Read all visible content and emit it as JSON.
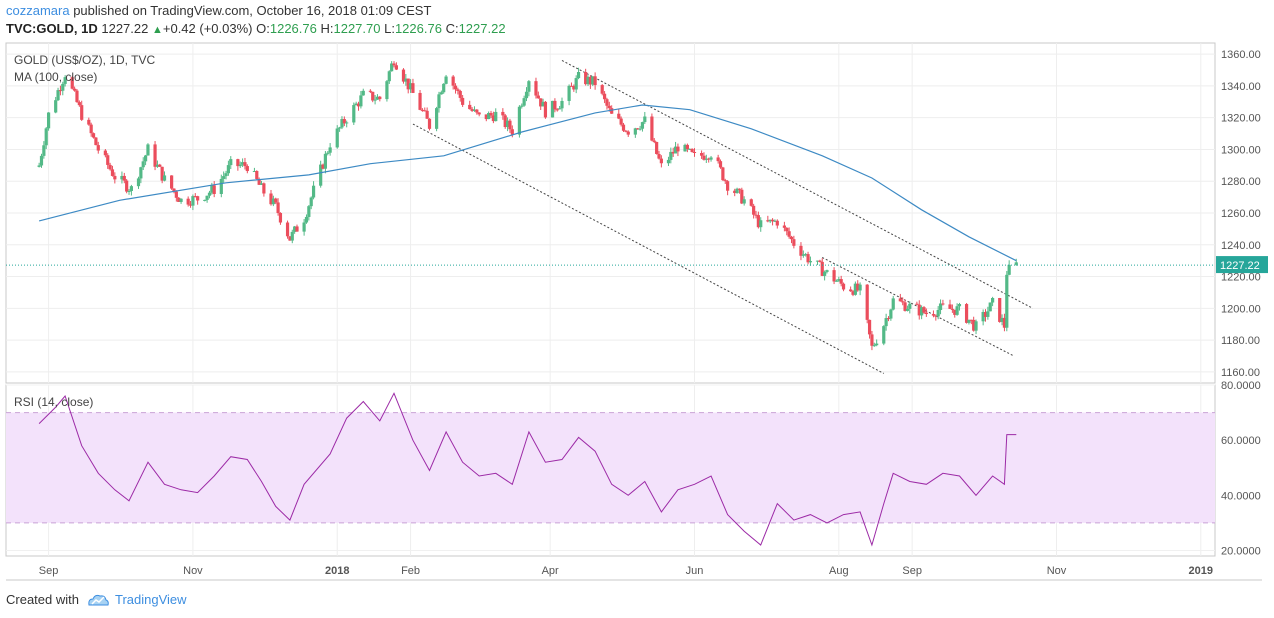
{
  "header": {
    "author": "cozzamara",
    "published_text": " published on TradingView.com, October 16, 2018 01:09 CEST",
    "symbol": "TVC:GOLD, 1D",
    "last": "1227.22",
    "change": "+0.42 (+0.03%)",
    "o_label": "O:",
    "o": "1226.76",
    "h_label": "H:",
    "h": "1227.70",
    "l_label": "L:",
    "l": "1226.76",
    "c_label": "C:",
    "c": "1227.22"
  },
  "footer": {
    "created_with": "Created with",
    "brand": "TradingView"
  },
  "colors": {
    "up": "#53b987",
    "down": "#eb4d5c",
    "ma": "#3d8ac4",
    "rsi": "#9c2aa6",
    "rsi_band": "#f3e2fb",
    "last_line": "#26a69a"
  },
  "chart_data": [
    {
      "type": "candlestick",
      "title": "GOLD (US$/OZ), 1D, TVC",
      "indicator": "MA (100, close)",
      "x_labels": [
        "Sep",
        "Nov",
        "2018",
        "Feb",
        "Apr",
        "Jun",
        "Aug",
        "Sep",
        "Nov",
        "2019"
      ],
      "y_ticks": [
        "1360.00",
        "1340.00",
        "1320.00",
        "1300.00",
        "1280.00",
        "1260.00",
        "1240.00",
        "1220.00",
        "1200.00",
        "1180.00",
        "1160.00"
      ],
      "ylim": [
        1153,
        1367
      ],
      "last_price_label": "1227.22",
      "close_path": [
        [
          "2017-08-28",
          1290
        ],
        [
          "2017-09-01",
          1322
        ],
        [
          "2017-09-08",
          1348
        ],
        [
          "2017-09-15",
          1322
        ],
        [
          "2017-09-22",
          1300
        ],
        [
          "2017-09-29",
          1283
        ],
        [
          "2017-10-06",
          1275
        ],
        [
          "2017-10-13",
          1300
        ],
        [
          "2017-10-20",
          1281
        ],
        [
          "2017-10-27",
          1268
        ],
        [
          "2017-11-03",
          1269
        ],
        [
          "2017-11-10",
          1275
        ],
        [
          "2017-11-17",
          1290
        ],
        [
          "2017-11-24",
          1290
        ],
        [
          "2017-11-30",
          1275
        ],
        [
          "2017-12-06",
          1264
        ],
        [
          "2017-12-12",
          1244
        ],
        [
          "2017-12-18",
          1257
        ],
        [
          "2017-12-29",
          1304
        ],
        [
          "2018-01-05",
          1320
        ],
        [
          "2018-01-12",
          1334
        ],
        [
          "2018-01-19",
          1332
        ],
        [
          "2018-01-25",
          1357
        ],
        [
          "2018-02-02",
          1335
        ],
        [
          "2018-02-09",
          1315
        ],
        [
          "2018-02-16",
          1349
        ],
        [
          "2018-02-23",
          1330
        ],
        [
          "2018-03-02",
          1320
        ],
        [
          "2018-03-09",
          1322
        ],
        [
          "2018-03-16",
          1312
        ],
        [
          "2018-03-23",
          1345
        ],
        [
          "2018-03-30",
          1324
        ],
        [
          "2018-04-06",
          1330
        ],
        [
          "2018-04-13",
          1345
        ],
        [
          "2018-04-20",
          1342
        ],
        [
          "2018-04-27",
          1321
        ],
        [
          "2018-05-04",
          1312
        ],
        [
          "2018-05-11",
          1318
        ],
        [
          "2018-05-18",
          1289
        ],
        [
          "2018-05-25",
          1302
        ],
        [
          "2018-06-01",
          1295
        ],
        [
          "2018-06-08",
          1298
        ],
        [
          "2018-06-15",
          1278
        ],
        [
          "2018-06-22",
          1268
        ],
        [
          "2018-06-29",
          1252
        ],
        [
          "2018-07-06",
          1255
        ],
        [
          "2018-07-13",
          1241
        ],
        [
          "2018-07-20",
          1230
        ],
        [
          "2018-07-27",
          1222
        ],
        [
          "2018-08-03",
          1214
        ],
        [
          "2018-08-10",
          1211
        ],
        [
          "2018-08-15",
          1175
        ],
        [
          "2018-08-20",
          1190
        ],
        [
          "2018-08-24",
          1205
        ],
        [
          "2018-08-31",
          1201
        ],
        [
          "2018-09-07",
          1197
        ],
        [
          "2018-09-14",
          1200
        ],
        [
          "2018-09-21",
          1199
        ],
        [
          "2018-09-28",
          1188
        ],
        [
          "2018-10-05",
          1203
        ],
        [
          "2018-10-10",
          1189
        ],
        [
          "2018-10-11",
          1223
        ],
        [
          "2018-10-15",
          1227
        ]
      ],
      "ma_path": [
        [
          "2017-08-28",
          1255
        ],
        [
          "2017-10-01",
          1268
        ],
        [
          "2017-11-15",
          1279
        ],
        [
          "2017-12-20",
          1284
        ],
        [
          "2018-01-15",
          1291
        ],
        [
          "2018-02-15",
          1296
        ],
        [
          "2018-03-20",
          1311
        ],
        [
          "2018-04-20",
          1323
        ],
        [
          "2018-05-10",
          1328
        ],
        [
          "2018-05-30",
          1325
        ],
        [
          "2018-06-25",
          1313
        ],
        [
          "2018-07-25",
          1296
        ],
        [
          "2018-08-15",
          1282
        ],
        [
          "2018-09-05",
          1262
        ],
        [
          "2018-09-25",
          1245
        ],
        [
          "2018-10-15",
          1230
        ]
      ],
      "channel_lines": [
        [
          [
            "2018-04-06",
            1356
          ],
          [
            "2018-10-22",
            1200
          ]
        ],
        [
          [
            "2018-02-02",
            1316
          ],
          [
            "2018-08-20",
            1159
          ]
        ],
        [
          [
            "2018-07-25",
            1232
          ],
          [
            "2018-10-14",
            1170
          ]
        ]
      ]
    },
    {
      "type": "line",
      "indicator": "RSI (14, close)",
      "y_ticks": [
        "80.0000",
        "60.0000",
        "40.0000",
        "20.0000"
      ],
      "ylim": [
        18,
        80
      ],
      "band": [
        30,
        70
      ],
      "series": [
        [
          "2017-08-28",
          66
        ],
        [
          "2017-09-04",
          72
        ],
        [
          "2017-09-08",
          76
        ],
        [
          "2017-09-15",
          58
        ],
        [
          "2017-09-22",
          48
        ],
        [
          "2017-09-29",
          42
        ],
        [
          "2017-10-05",
          38
        ],
        [
          "2017-10-13",
          52
        ],
        [
          "2017-10-20",
          44
        ],
        [
          "2017-10-27",
          42
        ],
        [
          "2017-11-03",
          41
        ],
        [
          "2017-11-10",
          47
        ],
        [
          "2017-11-17",
          54
        ],
        [
          "2017-11-24",
          53
        ],
        [
          "2017-11-30",
          45
        ],
        [
          "2017-12-06",
          36
        ],
        [
          "2017-12-12",
          31
        ],
        [
          "2017-12-18",
          44
        ],
        [
          "2017-12-29",
          55
        ],
        [
          "2018-01-05",
          68
        ],
        [
          "2018-01-12",
          74
        ],
        [
          "2018-01-19",
          67
        ],
        [
          "2018-01-25",
          77
        ],
        [
          "2018-02-02",
          60
        ],
        [
          "2018-02-09",
          49
        ],
        [
          "2018-02-16",
          63
        ],
        [
          "2018-02-23",
          52
        ],
        [
          "2018-03-02",
          47
        ],
        [
          "2018-03-09",
          48
        ],
        [
          "2018-03-16",
          44
        ],
        [
          "2018-03-23",
          63
        ],
        [
          "2018-03-30",
          52
        ],
        [
          "2018-04-06",
          53
        ],
        [
          "2018-04-13",
          61
        ],
        [
          "2018-04-20",
          56
        ],
        [
          "2018-04-27",
          44
        ],
        [
          "2018-05-04",
          40
        ],
        [
          "2018-05-11",
          45
        ],
        [
          "2018-05-18",
          34
        ],
        [
          "2018-05-25",
          42
        ],
        [
          "2018-06-01",
          44
        ],
        [
          "2018-06-08",
          47
        ],
        [
          "2018-06-15",
          33
        ],
        [
          "2018-06-22",
          27
        ],
        [
          "2018-06-29",
          22
        ],
        [
          "2018-07-06",
          37
        ],
        [
          "2018-07-13",
          31
        ],
        [
          "2018-07-20",
          33
        ],
        [
          "2018-07-27",
          30
        ],
        [
          "2018-08-03",
          33
        ],
        [
          "2018-08-10",
          34
        ],
        [
          "2018-08-15",
          22
        ],
        [
          "2018-08-20",
          37
        ],
        [
          "2018-08-24",
          48
        ],
        [
          "2018-08-31",
          45
        ],
        [
          "2018-09-07",
          44
        ],
        [
          "2018-09-14",
          48
        ],
        [
          "2018-09-21",
          47
        ],
        [
          "2018-09-28",
          40
        ],
        [
          "2018-10-05",
          47
        ],
        [
          "2018-10-10",
          44
        ],
        [
          "2018-10-11",
          62
        ],
        [
          "2018-10-15",
          62
        ]
      ]
    }
  ]
}
